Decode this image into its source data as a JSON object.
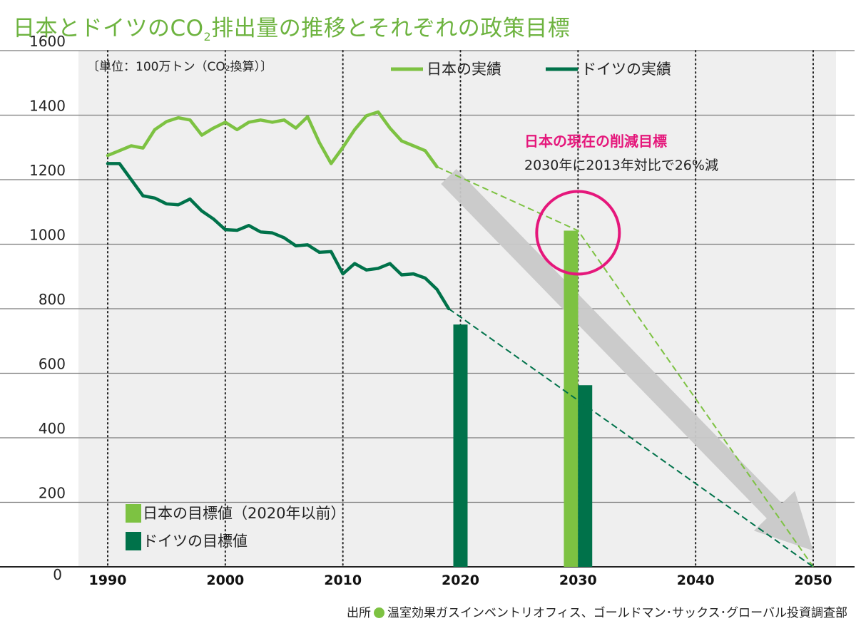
{
  "title": {
    "main": "日本とドイツのCO",
    "sub": "2",
    "rest": "排出量の推移とそれぞれの政策目標"
  },
  "source": {
    "prefix": "出所",
    "text": "温室効果ガスインベントリオフィス、ゴールドマン･サックス･グローバル投資調査部"
  },
  "colors": {
    "japan": "#7dc242",
    "germany": "#00724a",
    "highlight": "#e5177b",
    "arrow": "#c8c8c8",
    "plot_bg": "#efefef"
  },
  "chart_data": {
    "type": "line",
    "unit_label": "〔単位：100万トン（CO₂換算）〕",
    "x_ticks": [
      "1990",
      "2000",
      "2010",
      "2020",
      "2030",
      "2040",
      "2050"
    ],
    "y_ticks": [
      "0",
      "200",
      "400",
      "600",
      "800",
      "1000",
      "1200",
      "1400",
      "1600"
    ],
    "xlim": [
      1990,
      2050
    ],
    "ylim": [
      0,
      1600
    ],
    "grid": true,
    "legend_lines": [
      {
        "name": "日本の実績",
        "color": "#7dc242"
      },
      {
        "name": "ドイツの実績",
        "color": "#00724a"
      }
    ],
    "legend_bars": [
      {
        "name": "日本の目標値（2020年以前）",
        "color": "#7dc242"
      },
      {
        "name": "ドイツの目標値",
        "color": "#00724a"
      }
    ],
    "series": [
      {
        "name": "日本の実績",
        "color": "#7dc242",
        "x": [
          1990,
          1991,
          1992,
          1993,
          1994,
          1995,
          1996,
          1997,
          1998,
          1999,
          2000,
          2001,
          2002,
          2003,
          2004,
          2005,
          2006,
          2007,
          2008,
          2009,
          2010,
          2011,
          2012,
          2013,
          2014,
          2015,
          2016,
          2017,
          2018
        ],
        "y": [
          1275,
          1290,
          1305,
          1298,
          1355,
          1380,
          1392,
          1385,
          1338,
          1360,
          1378,
          1355,
          1378,
          1385,
          1378,
          1385,
          1360,
          1395,
          1315,
          1250,
          1300,
          1355,
          1398,
          1410,
          1360,
          1320,
          1305,
          1290,
          1240
        ]
      },
      {
        "name": "ドイツの実績",
        "color": "#00724a",
        "x": [
          1990,
          1991,
          1992,
          1993,
          1994,
          1995,
          1996,
          1997,
          1998,
          1999,
          2000,
          2001,
          2002,
          2003,
          2004,
          2005,
          2006,
          2007,
          2008,
          2009,
          2010,
          2011,
          2012,
          2013,
          2014,
          2015,
          2016,
          2017,
          2018,
          2019
        ],
        "y": [
          1250,
          1250,
          1200,
          1150,
          1143,
          1125,
          1122,
          1140,
          1103,
          1078,
          1045,
          1043,
          1058,
          1038,
          1035,
          1020,
          995,
          998,
          975,
          977,
          908,
          940,
          920,
          925,
          940,
          905,
          908,
          895,
          860,
          800
        ]
      }
    ],
    "projections": [
      {
        "name": "日本",
        "color": "#7dc242",
        "x": [
          2018,
          2030,
          2050
        ],
        "y": [
          1240,
          1042,
          0
        ]
      },
      {
        "name": "ドイツ",
        "color": "#00724a",
        "x": [
          2019,
          2050
        ],
        "y": [
          800,
          0
        ]
      }
    ],
    "bars": [
      {
        "x": 2020,
        "value": 751,
        "color": "#00724a",
        "series": "ドイツの目標値"
      },
      {
        "x": 2029.4,
        "value": 1042,
        "color": "#7dc242",
        "series": "日本の目標値"
      },
      {
        "x": 2030.6,
        "value": 563,
        "color": "#00724a",
        "series": "ドイツの目標値"
      }
    ],
    "annotation": {
      "title": "日本の現在の削減目標",
      "text": "2030年に2013年対比で26%減"
    },
    "trend_arrow": {
      "from": [
        2019,
        1210
      ],
      "to": [
        2050,
        50
      ]
    }
  }
}
